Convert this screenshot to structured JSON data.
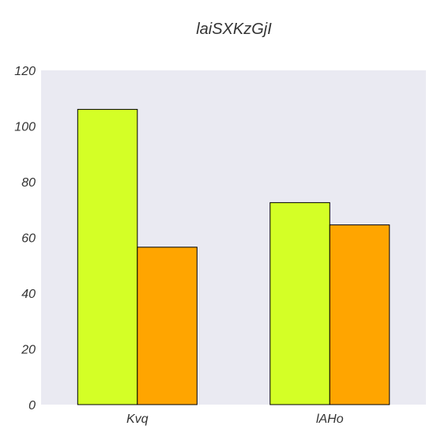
{
  "chart_data": {
    "type": "bar",
    "title": "laiSXKzGjI",
    "xlabel": "",
    "ylabel": "",
    "categories": [
      "Kvq",
      "lAHo"
    ],
    "series": [
      {
        "color": "#d4ff26",
        "values": [
          106,
          72.5
        ]
      },
      {
        "color": "#ffa500",
        "values": [
          56.5,
          64.5
        ]
      }
    ],
    "ylim": [
      0,
      120
    ],
    "yticks": [
      0,
      20,
      40,
      60,
      80,
      100,
      120
    ],
    "grid": false,
    "legend": "none",
    "plot_background": "#eaeaf2"
  }
}
